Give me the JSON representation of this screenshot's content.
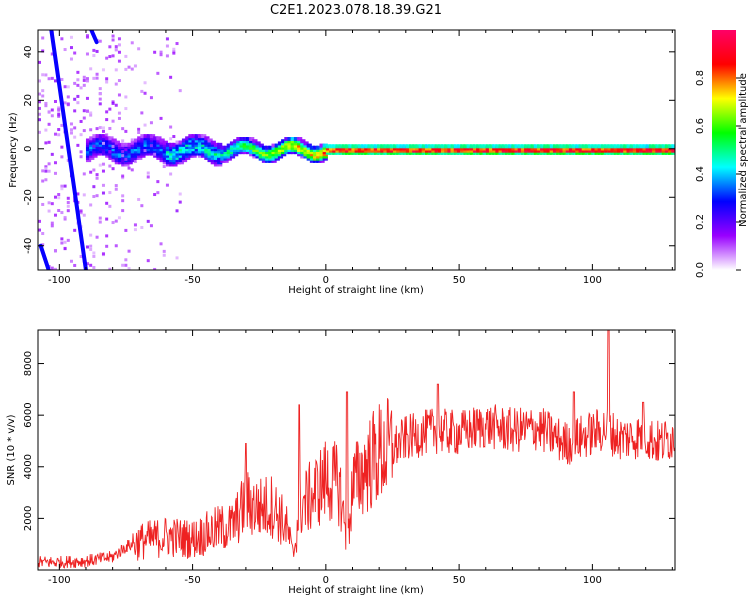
{
  "title": "C2E1.2023.078.18.39.G21",
  "colors": {
    "line": "#ee2222",
    "axis": "#000000",
    "background": "#ffffff"
  },
  "chart_data": [
    {
      "type": "heatmap",
      "xlabel": "Height of straight line (km)",
      "ylabel": "Frequency (Hz)",
      "xlim": [
        -108,
        131
      ],
      "ylim": [
        -50,
        49
      ],
      "xticks": [
        -100,
        -50,
        0,
        50,
        100
      ],
      "yticks": [
        -40,
        -20,
        0,
        20,
        40
      ],
      "colorbar": {
        "label": "Normalized spectral amplitude",
        "range": [
          0,
          1
        ],
        "ticks": [
          0.0,
          0.2,
          0.4,
          0.6,
          0.8
        ],
        "tick_labels": [
          "0.0",
          "0.2",
          "0.4",
          "0.6",
          "0.8"
        ],
        "colormap": [
          "#ffffff",
          "#9900ff",
          "#0000ff",
          "#00ffff",
          "#00ff00",
          "#ffff00",
          "#ff0000",
          "#ff0066"
        ]
      },
      "ridge": {
        "frequency": 0,
        "from_height": -80,
        "to_height": 131
      },
      "direct_signal_streaks": [
        {
          "start": [
            -103,
            49
          ],
          "end": [
            -90,
            -50
          ]
        },
        {
          "start": [
            -88,
            49
          ],
          "end": [
            -86,
            44
          ]
        },
        {
          "start": [
            -107,
            -40
          ],
          "end": [
            -104,
            -50
          ]
        }
      ],
      "grid": false
    },
    {
      "type": "line",
      "xlabel": "Height of straight line (km)",
      "ylabel": "SNR (10 * v/v)",
      "xlim": [
        -108,
        131
      ],
      "ylim": [
        0,
        9300
      ],
      "xticks": [
        -100,
        -50,
        0,
        50,
        100
      ],
      "yticks": [
        2000,
        4000,
        6000,
        8000
      ],
      "grid": false,
      "series": [
        {
          "x": [
            -108,
            -100,
            -90,
            -80,
            -75,
            -70,
            -60,
            -50,
            -40,
            -35,
            -30,
            -25,
            -20,
            -15,
            -12,
            -10,
            -8,
            -5,
            0,
            5,
            8,
            10,
            15,
            20,
            25,
            30,
            40,
            50,
            60,
            70,
            80,
            90,
            100,
            105,
            110,
            120,
            125,
            131
          ],
          "y": [
            300,
            300,
            350,
            500,
            900,
            1100,
            1300,
            1200,
            1600,
            1700,
            2600,
            2400,
            2500,
            1700,
            600,
            2400,
            2600,
            2900,
            3500,
            3300,
            1000,
            3200,
            4000,
            4500,
            4700,
            5100,
            5400,
            5300,
            5600,
            5400,
            5500,
            4900,
            5300,
            5500,
            5100,
            5200,
            4900,
            5200
          ],
          "spikes": [
            [
              -30,
              4900
            ],
            [
              -10,
              6400
            ],
            [
              8,
              6900
            ],
            [
              42,
              7200
            ],
            [
              93,
              6900
            ],
            [
              106,
              9300
            ],
            [
              119,
              6500
            ]
          ]
        }
      ]
    }
  ]
}
